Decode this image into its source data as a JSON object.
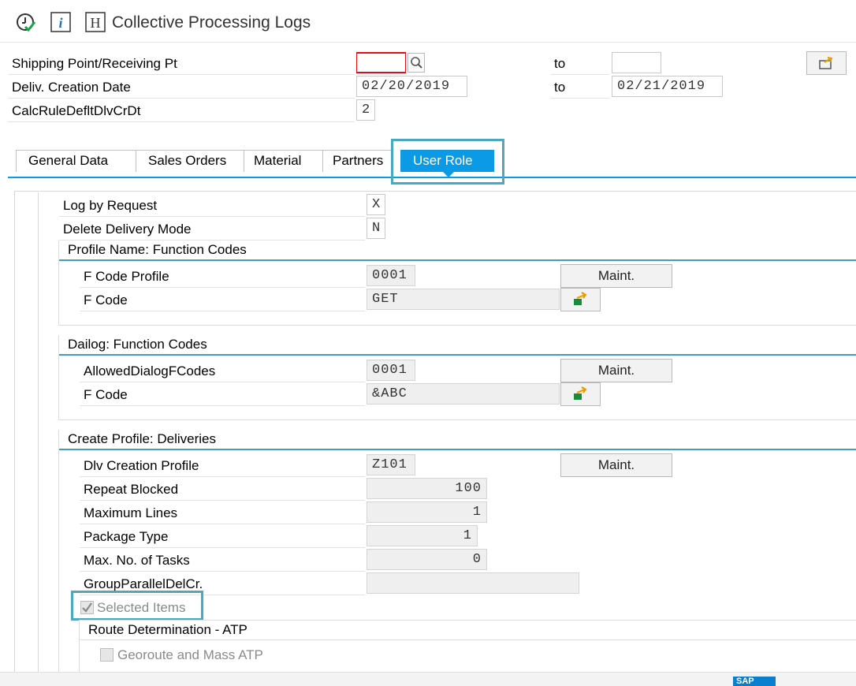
{
  "window": {
    "title": "Collective Processing Logs",
    "icons": [
      "execute-icon",
      "info-icon",
      "help-h-icon"
    ]
  },
  "header": {
    "shipping_point_label": "Shipping Point/Receiving Pt",
    "shipping_point_from": "",
    "shipping_point_to": "",
    "to_label": "to",
    "deliv_date_label": "Deliv. Creation Date",
    "deliv_date_from": "02/20/2019",
    "deliv_date_to": "02/21/2019",
    "calc_rule_label": "CalcRuleDefltDlvCrDt",
    "calc_rule_value": "2"
  },
  "tabs": [
    {
      "label": "General Data"
    },
    {
      "label": "Sales Orders"
    },
    {
      "label": "Material"
    },
    {
      "label": "Partners"
    },
    {
      "label": "User Role",
      "active": true
    }
  ],
  "user_role": {
    "log_by_request_label": "Log by Request",
    "log_by_request_value": "X",
    "delete_mode_label": "Delete Delivery Mode",
    "delete_mode_value": "N",
    "profile_group": {
      "title": "Profile Name: Function Codes",
      "f_code_profile_label": "F Code Profile",
      "f_code_profile_value": "0001",
      "f_code_label": "F Code",
      "f_code_value": "GET",
      "maint_label": "Maint."
    },
    "dialog_group": {
      "title": "Dailog: Function Codes",
      "allowed_label": "AllowedDialogFCodes",
      "allowed_value": "0001",
      "f_code_label": "F Code",
      "f_code_value": "&ABC",
      "maint_label": "Maint."
    },
    "delivery_group": {
      "title": "Create Profile: Deliveries",
      "dlv_profile_label": "Dlv Creation Profile",
      "dlv_profile_value": "Z101",
      "maint_label": "Maint.",
      "repeat_blocked_label": "Repeat Blocked",
      "repeat_blocked_value": "100",
      "max_lines_label": "Maximum Lines",
      "max_lines_value": "1",
      "package_type_label": "Package Type",
      "package_type_value": "1",
      "max_tasks_label": "Max. No. of Tasks",
      "max_tasks_value": "0",
      "group_parallel_label": "GroupParallelDelCr.",
      "group_parallel_value": "",
      "selected_items_label": "Selected Items",
      "selected_items_checked": true
    },
    "route_group": {
      "title": "Route Determination - ATP",
      "georoute_label": "Georoute and Mass ATP",
      "georoute_checked": false
    }
  },
  "colors": {
    "accent": "#0a9ae6",
    "highlight": "#4aa9bd"
  }
}
